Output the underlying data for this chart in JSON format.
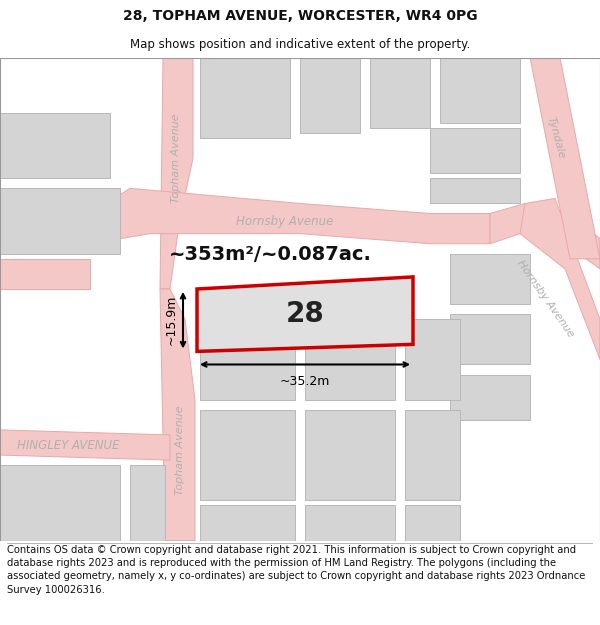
{
  "title_line1": "28, TOPHAM AVENUE, WORCESTER, WR4 0PG",
  "title_line2": "Map shows position and indicative extent of the property.",
  "area_label": "~353m²/~0.087ac.",
  "width_label": "~35.2m",
  "height_label": "~15.9m",
  "number_label": "28",
  "footer_text": "Contains OS data © Crown copyright and database right 2021. This information is subject to Crown copyright and database rights 2023 and is reproduced with the permission of HM Land Registry. The polygons (including the associated geometry, namely x, y co-ordinates) are subject to Crown copyright and database rights 2023 Ordnance Survey 100026316.",
  "bg_color": "#ffffff",
  "map_bg": "#f2f2f2",
  "road_fill": "#f5c8c8",
  "road_edge": "#e8a8a8",
  "building_fill": "#d4d4d4",
  "building_edge": "#b8b8b8",
  "plot_fill": "#e0e0e0",
  "plot_edge": "#cc0000",
  "street_color": "#b0b0b0",
  "dim_color": "#111111",
  "title_fontsize": 10,
  "subtitle_fontsize": 8.5,
  "footer_fontsize": 7.2,
  "street_fontsize": 8.5
}
